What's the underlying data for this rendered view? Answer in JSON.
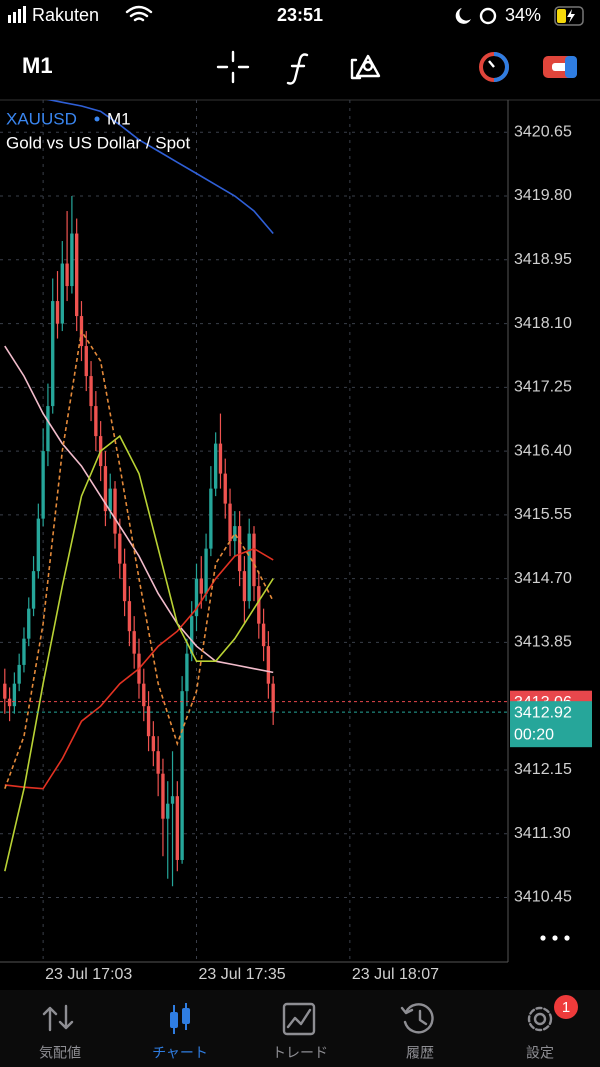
{
  "status_bar": {
    "carrier": "Rakuten",
    "time": "23:51",
    "battery": "34%"
  },
  "toolbar": {
    "timeframe": "M1"
  },
  "chart_data": {
    "type": "candlestick",
    "symbol": "XAUUSD",
    "timeframe": "M1",
    "description": "Gold vs US Dollar / Spot",
    "ylim": [
      3409.59,
      3421.08
    ],
    "yticks": [
      3420.65,
      {
        "value": 3419.8,
        "label": "3419.80"
      },
      3418.95,
      {
        "value": 3418.1,
        "label": "3418.10"
      },
      3417.25,
      {
        "value": 3416.4,
        "label": "3416.40"
      },
      3415.55,
      {
        "value": 3414.7,
        "label": "3414.70"
      },
      3413.85,
      3412.15,
      {
        "value": 3411.3,
        "label": "3411.30"
      },
      3410.45
    ],
    "xlim": [
      "23 Jul 16:54",
      "23 Jul 18:40"
    ],
    "xticks": [
      "23 Jul 17:03",
      "23 Jul 17:35",
      "23 Jul 18:07"
    ],
    "grid": true,
    "up_color": "#26a69a",
    "down_color": "#ef5350",
    "candles": {
      "x": [
        "23 Jul 16:55",
        "23 Jul 16:56",
        "23 Jul 16:57",
        "23 Jul 16:58",
        "23 Jul 16:59",
        "23 Jul 17:00",
        "23 Jul 17:01",
        "23 Jul 17:02",
        "23 Jul 17:03",
        "23 Jul 17:04",
        "23 Jul 17:05",
        "23 Jul 17:06",
        "23 Jul 17:07",
        "23 Jul 17:08",
        "23 Jul 17:09",
        "23 Jul 17:10",
        "23 Jul 17:11",
        "23 Jul 17:12",
        "23 Jul 17:13",
        "23 Jul 17:14",
        "23 Jul 17:15",
        "23 Jul 17:16",
        "23 Jul 17:17",
        "23 Jul 17:18",
        "23 Jul 17:19",
        "23 Jul 17:20",
        "23 Jul 17:21",
        "23 Jul 17:22",
        "23 Jul 17:23",
        "23 Jul 17:24",
        "23 Jul 17:25",
        "23 Jul 17:26",
        "23 Jul 17:27",
        "23 Jul 17:28",
        "23 Jul 17:29",
        "23 Jul 17:30",
        "23 Jul 17:31",
        "23 Jul 17:32",
        "23 Jul 17:33",
        "23 Jul 17:34",
        "23 Jul 17:35",
        "23 Jul 17:36",
        "23 Jul 17:37",
        "23 Jul 17:38",
        "23 Jul 17:39",
        "23 Jul 17:40",
        "23 Jul 17:41",
        "23 Jul 17:42",
        "23 Jul 17:43",
        "23 Jul 17:44",
        "23 Jul 17:45",
        "23 Jul 17:46",
        "23 Jul 17:47",
        "23 Jul 17:48",
        "23 Jul 17:49",
        "23 Jul 17:50",
        "23 Jul 17:51"
      ],
      "open": [
        3413.3,
        3413.1,
        3413.0,
        3413.3,
        3413.55,
        3413.9,
        3414.3,
        3414.8,
        3415.5,
        3416.4,
        3417.0,
        3418.4,
        3418.1,
        3418.9,
        3418.6,
        3419.3,
        3418.2,
        3417.8,
        3417.4,
        3417.0,
        3416.6,
        3416.2,
        3415.6,
        3415.9,
        3415.3,
        3414.9,
        3414.4,
        3414.0,
        3413.7,
        3413.3,
        3413.0,
        3412.6,
        3412.4,
        3412.1,
        3411.5,
        3411.7,
        3411.8,
        3410.95,
        3413.2,
        3413.7,
        3414.2,
        3414.7,
        3414.5,
        3415.1,
        3415.9,
        3416.5,
        3416.1,
        3415.7,
        3415.2,
        3415.4,
        3414.8,
        3414.4,
        3415.3,
        3414.6,
        3414.1,
        3413.8,
        3413.3
      ],
      "high": [
        3413.5,
        3413.25,
        3413.45,
        3413.7,
        3414.05,
        3414.45,
        3415.0,
        3415.7,
        3416.7,
        3417.3,
        3418.7,
        3418.8,
        3419.2,
        3419.6,
        3419.8,
        3419.5,
        3418.4,
        3418.0,
        3417.6,
        3417.2,
        3416.8,
        3416.4,
        3416.1,
        3416.0,
        3415.5,
        3415.1,
        3414.6,
        3414.2,
        3413.9,
        3413.5,
        3413.2,
        3412.8,
        3412.6,
        3412.3,
        3412.0,
        3412.4,
        3412.0,
        3413.4,
        3413.9,
        3414.4,
        3414.9,
        3415.0,
        3415.3,
        3416.2,
        3416.65,
        3416.9,
        3416.3,
        3415.9,
        3415.6,
        3415.6,
        3415.0,
        3415.5,
        3415.4,
        3414.8,
        3414.3,
        3414.0,
        3413.4
      ],
      "low": [
        3412.9,
        3412.8,
        3412.9,
        3413.2,
        3413.45,
        3413.8,
        3414.2,
        3414.7,
        3415.4,
        3416.2,
        3416.9,
        3417.9,
        3418.0,
        3418.4,
        3418.5,
        3418.0,
        3417.6,
        3417.2,
        3416.8,
        3416.4,
        3416.0,
        3415.4,
        3415.5,
        3415.1,
        3414.7,
        3414.2,
        3413.8,
        3413.5,
        3413.1,
        3412.8,
        3412.4,
        3412.2,
        3411.8,
        3411.0,
        3410.7,
        3410.6,
        3410.8,
        3410.9,
        3413.0,
        3413.6,
        3414.0,
        3414.3,
        3414.4,
        3415.0,
        3415.8,
        3415.9,
        3415.5,
        3415.0,
        3415.0,
        3414.6,
        3414.1,
        3414.3,
        3414.4,
        3413.9,
        3413.6,
        3413.1,
        3412.75
      ],
      "close": [
        3413.1,
        3413.0,
        3413.3,
        3413.55,
        3413.9,
        3414.3,
        3414.8,
        3415.5,
        3416.4,
        3417.0,
        3418.4,
        3418.1,
        3418.9,
        3418.6,
        3419.3,
        3418.2,
        3417.8,
        3417.4,
        3417.0,
        3416.6,
        3416.2,
        3415.6,
        3415.9,
        3415.3,
        3414.9,
        3414.4,
        3414.0,
        3413.7,
        3413.3,
        3413.0,
        3412.6,
        3412.4,
        3412.1,
        3411.5,
        3411.7,
        3411.8,
        3410.95,
        3413.2,
        3413.7,
        3414.2,
        3414.7,
        3414.5,
        3415.1,
        3415.9,
        3416.5,
        3416.1,
        3415.7,
        3415.2,
        3415.4,
        3414.8,
        3414.4,
        3415.3,
        3414.6,
        3414.1,
        3413.8,
        3413.3,
        3412.92
      ]
    },
    "indicators": [
      {
        "color": "#2f5fd6",
        "dashed": false,
        "x": [
          "23 Jul 17:03",
          "23 Jul 17:07",
          "23 Jul 17:11",
          "23 Jul 17:15",
          "23 Jul 17:19",
          "23 Jul 17:23",
          "23 Jul 17:27",
          "23 Jul 17:31",
          "23 Jul 17:35",
          "23 Jul 17:39",
          "23 Jul 17:43",
          "23 Jul 17:47",
          "23 Jul 17:51"
        ],
        "values": [
          3421.1,
          3421.05,
          3421.0,
          3420.93,
          3420.75,
          3420.55,
          3420.4,
          3420.25,
          3420.1,
          3419.95,
          3419.8,
          3419.6,
          3419.3
        ]
      },
      {
        "color": "#f2bccb",
        "dashed": false,
        "x": [
          "23 Jul 16:55",
          "23 Jul 16:59",
          "23 Jul 17:03",
          "23 Jul 17:07",
          "23 Jul 17:11",
          "23 Jul 17:15",
          "23 Jul 17:19",
          "23 Jul 17:23",
          "23 Jul 17:27",
          "23 Jul 17:31",
          "23 Jul 17:35",
          "23 Jul 17:39",
          "23 Jul 17:43",
          "23 Jul 17:47",
          "23 Jul 17:51"
        ],
        "values": [
          3417.8,
          3417.4,
          3416.9,
          3416.5,
          3416.2,
          3415.8,
          3415.4,
          3415.0,
          3414.5,
          3414.1,
          3413.8,
          3413.6,
          3413.55,
          3413.5,
          3413.45
        ]
      },
      {
        "color": "#e23222",
        "dashed": false,
        "x": [
          "23 Jul 16:55",
          "23 Jul 16:59",
          "23 Jul 17:03",
          "23 Jul 17:07",
          "23 Jul 17:11",
          "23 Jul 17:15",
          "23 Jul 17:19",
          "23 Jul 17:23",
          "23 Jul 17:27",
          "23 Jul 17:31",
          "23 Jul 17:35",
          "23 Jul 17:39",
          "23 Jul 17:43",
          "23 Jul 17:47",
          "23 Jul 17:51"
        ],
        "values": [
          3411.95,
          3411.92,
          3411.9,
          3412.3,
          3412.8,
          3413.0,
          3413.3,
          3413.5,
          3413.8,
          3414.0,
          3414.3,
          3414.7,
          3415.0,
          3415.1,
          3414.95
        ]
      },
      {
        "color": "#b9d234",
        "dashed": false,
        "x": [
          "23 Jul 16:55",
          "23 Jul 16:59",
          "23 Jul 17:03",
          "23 Jul 17:07",
          "23 Jul 17:11",
          "23 Jul 17:15",
          "23 Jul 17:19",
          "23 Jul 17:23",
          "23 Jul 17:27",
          "23 Jul 17:31",
          "23 Jul 17:35",
          "23 Jul 17:39",
          "23 Jul 17:43",
          "23 Jul 17:47",
          "23 Jul 17:51"
        ],
        "values": [
          3410.8,
          3411.9,
          3413.3,
          3414.6,
          3415.8,
          3416.4,
          3416.6,
          3416.1,
          3415.1,
          3414.1,
          3413.6,
          3413.6,
          3413.9,
          3414.3,
          3414.7
        ]
      },
      {
        "color": "#e48a3a",
        "dashed": true,
        "x": [
          "23 Jul 16:55",
          "23 Jul 16:59",
          "23 Jul 17:03",
          "23 Jul 17:07",
          "23 Jul 17:11",
          "23 Jul 17:15",
          "23 Jul 17:19",
          "23 Jul 17:23",
          "23 Jul 17:27",
          "23 Jul 17:31",
          "23 Jul 17:35",
          "23 Jul 17:39",
          "23 Jul 17:43",
          "23 Jul 17:47",
          "23 Jul 17:51"
        ],
        "values": [
          3411.9,
          3412.6,
          3414.1,
          3416.4,
          3418.0,
          3417.6,
          3416.2,
          3414.7,
          3413.3,
          3412.5,
          3413.2,
          3414.9,
          3415.3,
          3414.9,
          3414.4
        ]
      }
    ],
    "price_lines": [
      {
        "value": 3413.06,
        "color": "#e8474c"
      },
      {
        "value": 3412.92,
        "color": "#26a69a"
      }
    ],
    "countdown": "00:20"
  },
  "bottom_nav": [
    {
      "label": "気配値",
      "active": false
    },
    {
      "label": "チャート",
      "active": true
    },
    {
      "label": "トレード",
      "active": false
    },
    {
      "label": "履歴",
      "active": false
    },
    {
      "label": "設定",
      "active": false,
      "badge": 1
    }
  ]
}
